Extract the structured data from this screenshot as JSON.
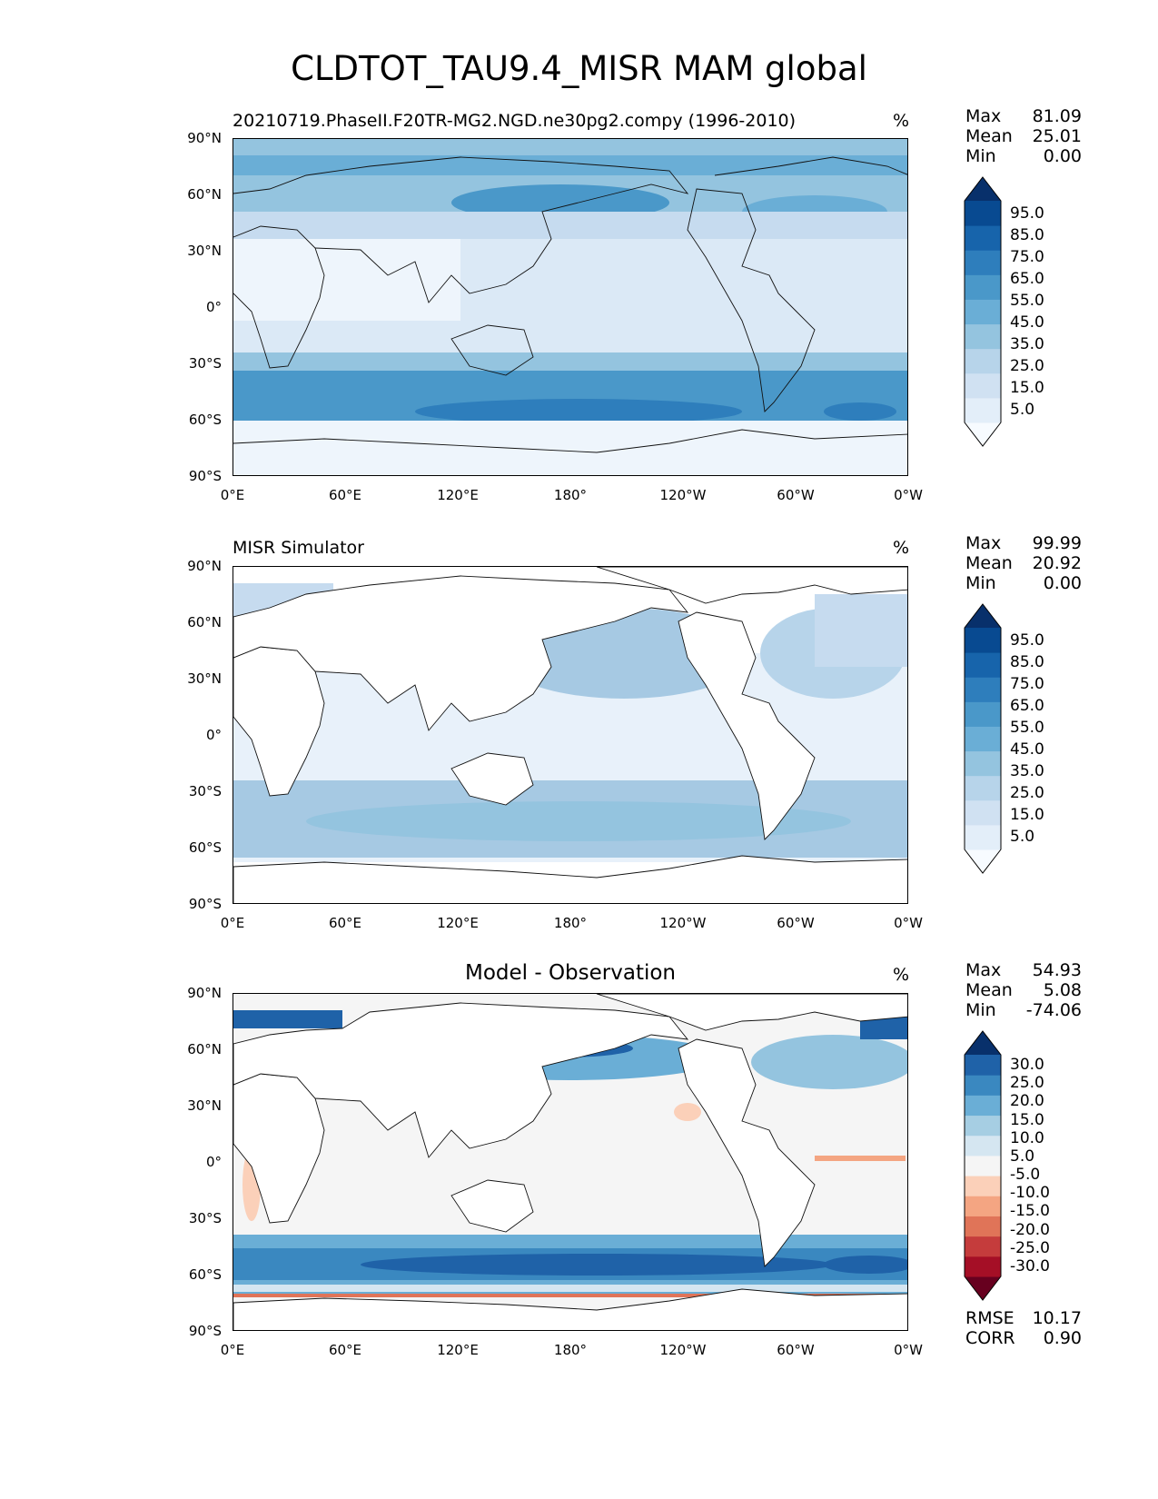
{
  "title": "CLDTOT_TAU9.4_MISR MAM global",
  "panels": [
    {
      "title_left": "20210719.PhaseII.F20TR-MG2.NGD.ne30pg2.compy (1996-2010)",
      "title_center": "",
      "units": "%",
      "stats": {
        "max_label": "Max",
        "max": "81.09",
        "mean_label": "Mean",
        "mean": "25.01",
        "min_label": "Min",
        "min": "0.00"
      },
      "colorbar": {
        "labels": [
          "95.0",
          "85.0",
          "75.0",
          "65.0",
          "55.0",
          "45.0",
          "35.0",
          "25.0",
          "15.0",
          "5.0"
        ],
        "colors": [
          "#f7fbff",
          "#e3eef9",
          "#d0e1f2",
          "#b7d4ea",
          "#94c4df",
          "#6aaed6",
          "#4a98c9",
          "#2e7ebc",
          "#1764ab",
          "#084a91",
          "#08306b"
        ]
      }
    },
    {
      "title_left": "MISR Simulator",
      "title_center": "",
      "units": "%",
      "stats": {
        "max_label": "Max",
        "max": "99.99",
        "mean_label": "Mean",
        "mean": "20.92",
        "min_label": "Min",
        "min": "0.00"
      },
      "colorbar": {
        "labels": [
          "95.0",
          "85.0",
          "75.0",
          "65.0",
          "55.0",
          "45.0",
          "35.0",
          "25.0",
          "15.0",
          "5.0"
        ],
        "colors": [
          "#f7fbff",
          "#e3eef9",
          "#d0e1f2",
          "#b7d4ea",
          "#94c4df",
          "#6aaed6",
          "#4a98c9",
          "#2e7ebc",
          "#1764ab",
          "#084a91",
          "#08306b"
        ]
      }
    },
    {
      "title_left": "",
      "title_center": "Model - Observation",
      "units": "%",
      "stats": {
        "max_label": "Max",
        "max": "54.93",
        "mean_label": "Mean",
        "mean": "5.08",
        "min_label": "Min",
        "min": "-74.06"
      },
      "colorbar": {
        "labels": [
          "30.0",
          "25.0",
          "20.0",
          "15.0",
          "10.0",
          "5.0",
          "-5.0",
          "-10.0",
          "-15.0",
          "-20.0",
          "-25.0",
          "-30.0"
        ],
        "colors": [
          "#67001f",
          "#a50f26",
          "#c53c3c",
          "#e07458",
          "#f4a582",
          "#fbd0b9",
          "#f5f5f5",
          "#d5e6f1",
          "#a6cee3",
          "#6aaed6",
          "#3a88c0",
          "#1f62a8",
          "#08306b"
        ]
      }
    }
  ],
  "axes": {
    "yticks": [
      "90°N",
      "60°N",
      "30°N",
      "0°",
      "30°S",
      "60°S",
      "90°S"
    ],
    "xticks": [
      "0°E",
      "60°E",
      "120°E",
      "180°",
      "120°W",
      "60°W",
      "0°W"
    ]
  },
  "error_stats": {
    "rmse_label": "RMSE",
    "rmse": "10.17",
    "corr_label": "CORR",
    "corr": "0.90"
  }
}
